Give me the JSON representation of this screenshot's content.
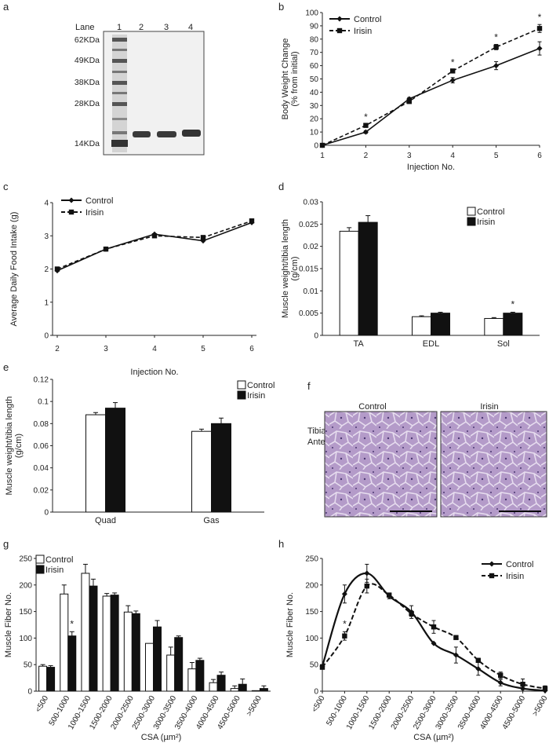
{
  "figure": {
    "panel_letters": [
      "a",
      "b",
      "c",
      "d",
      "e",
      "f",
      "g",
      "h"
    ]
  },
  "colors": {
    "ink": "#222222",
    "black": "#111111",
    "white": "#ffffff",
    "tissue": "#b89ac8",
    "gel": "#f1f1f1"
  },
  "gel": {
    "lane_header": "Lane",
    "lanes": [
      "1",
      "2",
      "3",
      "4"
    ],
    "markers": [
      "62KDa",
      "49KDa",
      "38KDa",
      "28KDa",
      "14KDa"
    ],
    "marker_kda": [
      62,
      49,
      38,
      28,
      14
    ]
  },
  "histology": {
    "row_label": [
      "Tibialis",
      "Anterior"
    ],
    "panels": [
      {
        "title": "Control"
      },
      {
        "title": "Irisin"
      }
    ]
  },
  "chart_data": [
    {
      "panel": "b",
      "type": "line",
      "xlabel": "Injection No.",
      "ylabel": [
        "Body Weight Change",
        "(% from initial)"
      ],
      "x": [
        1,
        2,
        3,
        4,
        5,
        6
      ],
      "xticks": [
        "1",
        "2",
        "3",
        "4",
        "5",
        "6"
      ],
      "yticks": [
        "0",
        "10",
        "20",
        "30",
        "40",
        "50",
        "60",
        "70",
        "80",
        "90",
        "100"
      ],
      "ylim": [
        0,
        100
      ],
      "series": [
        {
          "name": "Control",
          "values": [
            0,
            10,
            35,
            49,
            60,
            73
          ],
          "errors": [
            0,
            1,
            1,
            2,
            3,
            5
          ],
          "style": "solid",
          "marker": "diamond"
        },
        {
          "name": "Irisin",
          "values": [
            0,
            15,
            33,
            56,
            74,
            88
          ],
          "errors": [
            0,
            1,
            1,
            1,
            2,
            3
          ],
          "style": "dashed",
          "marker": "square"
        }
      ],
      "significance": [
        2,
        4,
        5,
        6
      ],
      "sig_mark": "*",
      "legend": "top-left"
    },
    {
      "panel": "c",
      "type": "line",
      "xlabel": "Injection No.",
      "ylabel": [
        "Average Daily Food Intake (g)"
      ],
      "x": [
        2,
        3,
        4,
        5,
        6
      ],
      "xticks": [
        "2",
        "3",
        "4",
        "5",
        "6"
      ],
      "yticks": [
        "0",
        "1",
        "2",
        "3",
        "4"
      ],
      "ylim": [
        0,
        4
      ],
      "series": [
        {
          "name": "Control",
          "values": [
            1.95,
            2.6,
            3.05,
            2.85,
            3.4
          ],
          "style": "solid",
          "marker": "diamond"
        },
        {
          "name": "Irisin",
          "values": [
            2.0,
            2.6,
            3.0,
            2.95,
            3.45
          ],
          "style": "dashed",
          "marker": "square"
        }
      ],
      "legend": "top-left"
    },
    {
      "panel": "d",
      "type": "bar",
      "categories": [
        "TA",
        "EDL",
        "Sol"
      ],
      "ylabel": [
        "Muscle weight/tibia length",
        "(g/cm)"
      ],
      "yticks": [
        "0",
        "0.005",
        "0.01",
        "0.015",
        "0.02",
        "0.025",
        "0.03"
      ],
      "ylim": [
        0,
        0.03
      ],
      "series": [
        {
          "name": "Control",
          "values": [
            0.0234,
            0.0042,
            0.0038
          ],
          "errors": [
            0.0008,
            0.0002,
            0.0002
          ]
        },
        {
          "name": "Irisin",
          "values": [
            0.0254,
            0.005,
            0.005
          ],
          "errors": [
            0.0015,
            0.0002,
            0.0002
          ]
        }
      ],
      "significance": [
        2
      ],
      "sig_mark": "*",
      "legend": "top-right"
    },
    {
      "panel": "e",
      "type": "bar",
      "categories": [
        "Quad",
        "Gas"
      ],
      "ylabel": [
        "Muscle weight/tibia length",
        "(g/cm)"
      ],
      "yticks": [
        "0",
        "0.02",
        "0.04",
        "0.06",
        "0.08",
        "0.1",
        "0.12"
      ],
      "ylim": [
        0,
        0.12
      ],
      "series": [
        {
          "name": "Control",
          "values": [
            0.088,
            0.073
          ],
          "errors": [
            0.002,
            0.002
          ]
        },
        {
          "name": "Irisin",
          "values": [
            0.094,
            0.08
          ],
          "errors": [
            0.005,
            0.005
          ]
        }
      ],
      "legend": "top-right"
    },
    {
      "panel": "g",
      "type": "bar",
      "categories": [
        "<500",
        "500-1000",
        "1000-1500",
        "1500-2000",
        "2000-2500",
        "2500-3000",
        "3000-3500",
        "3500-4000",
        "4000-4500",
        "4500-5000",
        ">5000"
      ],
      "xlabel": "CSA (µm²)",
      "ylabel": [
        "Muscle Fiber No."
      ],
      "yticks": [
        "0",
        "50",
        "100",
        "150",
        "200",
        "250"
      ],
      "ylim": [
        0,
        250
      ],
      "series": [
        {
          "name": "Control",
          "values": [
            47,
            183,
            222,
            179,
            149,
            90,
            68,
            42,
            16,
            5,
            1
          ],
          "errors": [
            3,
            17,
            17,
            5,
            12,
            0,
            15,
            12,
            6,
            5,
            0
          ]
        },
        {
          "name": "Irisin",
          "values": [
            45,
            104,
            198,
            181,
            146,
            121,
            101,
            58,
            30,
            13,
            5
          ],
          "errors": [
            3,
            8,
            13,
            4,
            5,
            12,
            3,
            4,
            6,
            10,
            5
          ]
        }
      ],
      "significance": [
        1
      ],
      "sig_mark": "*",
      "legend": "top-left"
    },
    {
      "panel": "h",
      "type": "line",
      "categories": [
        "<500",
        "500-1000",
        "1000-1500",
        "1500-2000",
        "2000-2500",
        "2500-3000",
        "3000-3500",
        "3500-4000",
        "4000-4500",
        "4500-5000",
        ">5000"
      ],
      "xlabel": "CSA (µm²)",
      "ylabel": [
        "Muscle Fiber No."
      ],
      "yticks": [
        "0",
        "50",
        "100",
        "150",
        "200",
        "250"
      ],
      "ylim": [
        0,
        250
      ],
      "series": [
        {
          "name": "Control",
          "values": [
            47,
            183,
            222,
            179,
            149,
            90,
            68,
            42,
            16,
            5,
            1
          ],
          "errors": [
            3,
            17,
            17,
            5,
            12,
            0,
            15,
            12,
            6,
            5,
            0
          ],
          "style": "solid",
          "marker": "diamond"
        },
        {
          "name": "Irisin",
          "values": [
            45,
            104,
            198,
            181,
            146,
            121,
            101,
            58,
            30,
            13,
            5
          ],
          "errors": [
            3,
            8,
            13,
            4,
            5,
            12,
            3,
            4,
            6,
            10,
            5
          ],
          "style": "dashed",
          "marker": "square"
        }
      ],
      "significance": [
        1
      ],
      "sig_mark": "*",
      "legend": "top-right"
    }
  ]
}
